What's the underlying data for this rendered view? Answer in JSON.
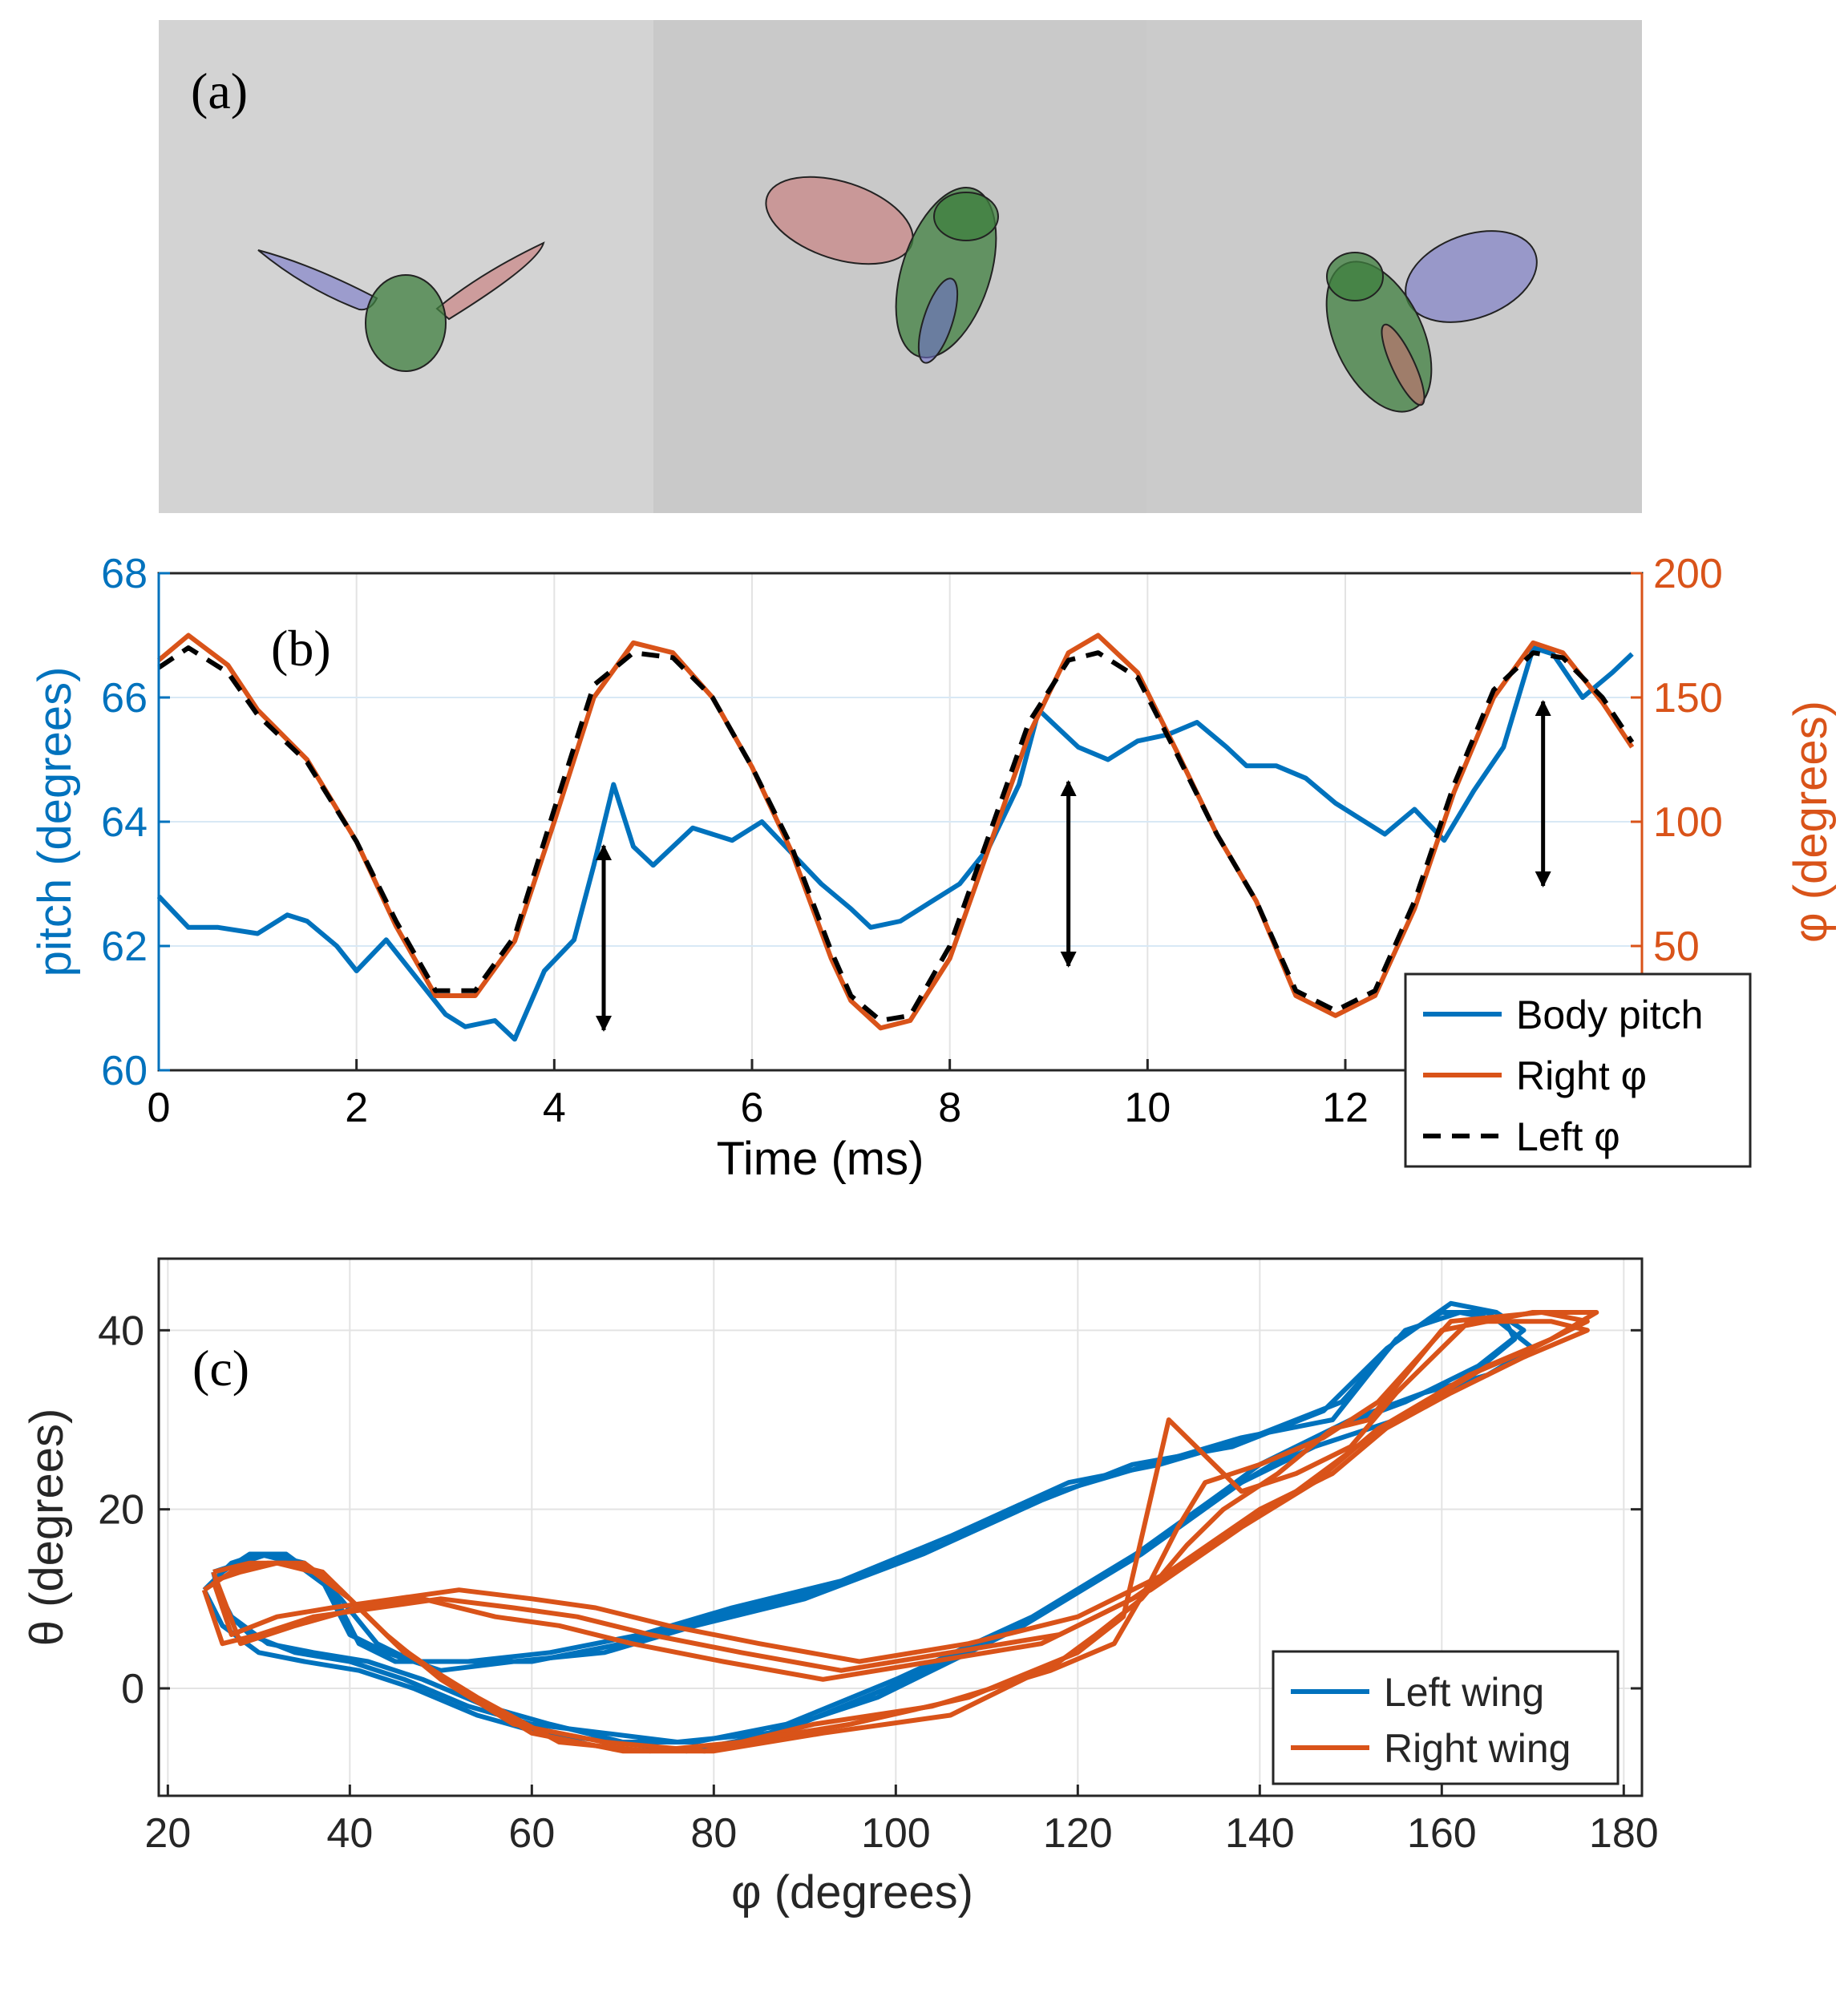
{
  "figure": {
    "panel_a": {
      "label": "(a)",
      "frames": [
        {
          "name": "frame-1",
          "description": "fly body with left and right wings extended"
        },
        {
          "name": "frame-2",
          "description": "fly body with wing forward"
        },
        {
          "name": "frame-3",
          "description": "fly body with wing back"
        }
      ],
      "colors": {
        "body": "#3f7f3f",
        "left_wing": "#6f6fc8",
        "right_wing": "#c87070",
        "background": "#cfcfcf"
      }
    },
    "panel_b": {
      "label": "(b)",
      "arrows_at_ms": [
        4.5,
        9.2,
        14.0
      ]
    },
    "panel_c": {
      "label": "(c)"
    }
  },
  "chart_data": [
    {
      "id": "panel-b",
      "type": "line",
      "xlabel": "Time (ms)",
      "ylabel_left": "pitch (degrees)",
      "ylabel_right": "φ (degrees)",
      "xlim": [
        0,
        15
      ],
      "ylim_left": [
        60,
        68
      ],
      "ylim_right": [
        0,
        200
      ],
      "xticks": [
        "0",
        "2",
        "4",
        "6",
        "8",
        "10",
        "12"
      ],
      "yticks_left": [
        "60",
        "62",
        "64",
        "66",
        "68"
      ],
      "yticks_right": [
        "50",
        "100",
        "150",
        "200"
      ],
      "grid": true,
      "legend_position": "bottom-right",
      "legend": [
        "Body pitch",
        "Right φ",
        "Left φ"
      ],
      "series": [
        {
          "name": "Body pitch",
          "axis": "left",
          "color": "#0072BD",
          "style": "solid",
          "x": [
            0,
            0.3,
            0.6,
            1.0,
            1.3,
            1.5,
            1.8,
            2.0,
            2.3,
            2.6,
            2.9,
            3.1,
            3.4,
            3.6,
            3.9,
            4.2,
            4.4,
            4.6,
            4.8,
            5.0,
            5.4,
            5.8,
            6.1,
            6.4,
            6.7,
            7.0,
            7.2,
            7.5,
            7.8,
            8.1,
            8.4,
            8.7,
            8.9,
            9.1,
            9.3,
            9.6,
            9.9,
            10.2,
            10.5,
            10.8,
            11.0,
            11.3,
            11.6,
            11.9,
            12.1,
            12.4,
            12.7,
            13.0,
            13.3,
            13.6,
            13.9,
            14.1,
            14.4,
            14.7,
            14.9
          ],
          "values": [
            62.8,
            62.3,
            62.3,
            62.2,
            62.5,
            62.4,
            62.0,
            61.6,
            62.1,
            61.5,
            60.9,
            60.7,
            60.8,
            60.5,
            61.6,
            62.1,
            63.3,
            64.6,
            63.6,
            63.3,
            63.9,
            63.7,
            64.0,
            63.5,
            63.0,
            62.6,
            62.3,
            62.4,
            62.7,
            63.0,
            63.6,
            64.6,
            65.8,
            65.5,
            65.2,
            65.0,
            65.3,
            65.4,
            65.6,
            65.2,
            64.9,
            64.9,
            64.7,
            64.3,
            64.1,
            63.8,
            64.2,
            63.7,
            64.5,
            65.2,
            66.8,
            66.7,
            66.0,
            66.4,
            66.7
          ]
        },
        {
          "name": "Right φ",
          "axis": "right",
          "color": "#D95319",
          "style": "solid",
          "x": [
            0,
            0.3,
            0.7,
            1.0,
            1.5,
            2.0,
            2.4,
            2.8,
            3.2,
            3.6,
            4.0,
            4.4,
            4.8,
            5.2,
            5.6,
            6.0,
            6.4,
            6.8,
            7.0,
            7.3,
            7.6,
            8.0,
            8.4,
            8.8,
            9.2,
            9.5,
            9.9,
            10.3,
            10.7,
            11.1,
            11.5,
            11.9,
            12.3,
            12.7,
            13.1,
            13.5,
            13.9,
            14.2,
            14.6,
            14.9
          ],
          "values": [
            165,
            175,
            163,
            145,
            125,
            92,
            58,
            30,
            30,
            52,
            100,
            150,
            172,
            168,
            150,
            122,
            88,
            45,
            28,
            17,
            20,
            45,
            90,
            135,
            168,
            175,
            160,
            128,
            95,
            68,
            30,
            22,
            30,
            65,
            112,
            150,
            172,
            168,
            148,
            130
          ]
        },
        {
          "name": "Left φ",
          "axis": "right",
          "color": "#000000",
          "style": "dashed",
          "x": [
            0,
            0.3,
            0.7,
            1.0,
            1.5,
            2.0,
            2.4,
            2.8,
            3.2,
            3.6,
            4.0,
            4.4,
            4.8,
            5.2,
            5.6,
            6.0,
            6.4,
            6.8,
            7.0,
            7.3,
            7.6,
            8.0,
            8.4,
            8.8,
            9.2,
            9.5,
            9.9,
            10.3,
            10.7,
            11.1,
            11.5,
            11.9,
            12.3,
            12.7,
            13.1,
            13.5,
            13.9,
            14.2,
            14.6,
            14.9
          ],
          "values": [
            162,
            170,
            160,
            143,
            124,
            92,
            60,
            32,
            32,
            54,
            105,
            155,
            168,
            166,
            150,
            122,
            90,
            48,
            30,
            20,
            22,
            50,
            95,
            140,
            165,
            168,
            158,
            127,
            95,
            68,
            32,
            24,
            32,
            68,
            115,
            153,
            168,
            166,
            150,
            132
          ]
        }
      ]
    },
    {
      "id": "panel-c",
      "type": "line",
      "xlabel": "φ (degrees)",
      "ylabel": "θ (degrees)",
      "xlim": [
        19,
        182
      ],
      "ylim": [
        -12,
        48
      ],
      "xticks": [
        "20",
        "40",
        "60",
        "80",
        "100",
        "120",
        "140",
        "160",
        "180"
      ],
      "yticks": [
        "0",
        "20",
        "40"
      ],
      "grid": true,
      "legend_position": "bottom-right",
      "legend": [
        "Left wing",
        "Right wing"
      ],
      "series": [
        {
          "name": "Left wing",
          "color": "#0072BD",
          "cycles": [
            {
              "x": [
                25,
                27,
                30,
                34,
                38,
                41,
                45,
                52,
                60,
                70,
                80,
                92,
                105,
                118,
                128,
                138,
                148,
                155,
                160,
                165,
                170,
                165,
                158,
                150,
                140,
                128,
                115,
                100,
                88,
                78,
                70,
                62,
                55,
                48,
                42,
                36,
                31,
                27,
                25
              ],
              "y": [
                12,
                14,
                15,
                14,
                11,
                5,
                3,
                3,
                3,
                5,
                8,
                11,
                16,
                22,
                25,
                28,
                30,
                39,
                42,
                42,
                38,
                35,
                33,
                30,
                25,
                16,
                8,
                1,
                -4,
                -6,
                -6,
                -4,
                -2,
                1,
                3,
                4,
                5,
                8,
                12
              ]
            },
            {
              "x": [
                24,
                26,
                29,
                33,
                37,
                40,
                44,
                50,
                58,
                68,
                78,
                90,
                103,
                116,
                126,
                137,
                147,
                154,
                161,
                166,
                169,
                164,
                156,
                148,
                138,
                127,
                114,
                99,
                87,
                77,
                69,
                61,
                54,
                47,
                41,
                35,
                30,
                26,
                24
              ],
              "y": [
                11,
                13,
                15,
                15,
                12,
                6,
                4,
                2,
                3,
                4,
                7,
                10,
                15,
                21,
                25,
                27,
                31,
                38,
                43,
                42,
                40,
                36,
                32,
                29,
                23,
                15,
                7,
                0,
                -5,
                -7,
                -6,
                -5,
                -3,
                0,
                2,
                3,
                4,
                7,
                11
              ]
            },
            {
              "x": [
                25,
                28,
                31,
                35,
                39,
                43,
                47,
                53,
                62,
                72,
                82,
                94,
                106,
                119,
                129,
                139,
                149,
                156,
                162,
                167,
                168,
                162,
                155,
                146,
                136,
                125,
                112,
                98,
                86,
                76,
                68,
                60,
                53,
                46,
                40,
                34,
                29,
                26,
                25
              ],
              "y": [
                13,
                14,
                15,
                14,
                10,
                5,
                3,
                3,
                4,
                6,
                9,
                12,
                17,
                23,
                25,
                28,
                32,
                40,
                42,
                41,
                39,
                34,
                30,
                27,
                22,
                14,
                6,
                -1,
                -5,
                -6,
                -5,
                -4,
                -2,
                1,
                3,
                4,
                6,
                9,
                13
              ]
            }
          ]
        },
        {
          "name": "Right wing",
          "color": "#D95319",
          "cycles": [
            {
              "x": [
                25,
                28,
                32,
                36,
                40,
                45,
                52,
                60,
                70,
                80,
                92,
                106,
                118,
                122,
                127,
                132,
                136,
                142,
                148,
                152,
                160,
                170,
                177,
                172,
                165,
                155,
                148,
                140,
                130,
                120,
                108,
                96,
                85,
                75,
                67,
                60,
                52,
                45,
                38,
                32,
                27,
                25
              ],
              "y": [
                12,
                13,
                14,
                13,
                10,
                5,
                0,
                -5,
                -7,
                -7,
                -5,
                -3,
                3,
                6,
                10,
                16,
                20,
                24,
                29,
                30,
                40,
                42,
                42,
                39,
                36,
                30,
                24,
                20,
                13,
                8,
                5,
                3,
                5,
                7,
                9,
                10,
                11,
                10,
                9,
                8,
                6,
                12
              ]
            },
            {
              "x": [
                24,
                27,
                31,
                35,
                39,
                44,
                50,
                58,
                68,
                79,
                91,
                104,
                117,
                124,
                128,
                131,
                134,
                140,
                147,
                153,
                161,
                171,
                176,
                170,
                163,
                153,
                146,
                138,
                128,
                118,
                106,
                94,
                83,
                73,
                65,
                58,
                50,
                43,
                36,
                30,
                26,
                24
              ],
              "y": [
                11,
                13,
                14,
                14,
                11,
                6,
                1,
                -4,
                -6,
                -7,
                -4,
                -2,
                2,
                5,
                12,
                18,
                23,
                25,
                28,
                32,
                41,
                42,
                41,
                38,
                35,
                29,
                23,
                18,
                11,
                6,
                4,
                2,
                4,
                6,
                8,
                9,
                10,
                9,
                8,
                6,
                5,
                11
              ]
            },
            {
              "x": [
                25,
                29,
                33,
                37,
                41,
                46,
                54,
                63,
                73,
                83,
                95,
                108,
                120,
                125,
                130,
                134,
                138,
                144,
                150,
                155,
                163,
                172,
                176,
                169,
                161,
                152,
                144,
                136,
                126,
                116,
                104,
                92,
                81,
                71,
                63,
                56,
                48,
                41,
                34,
                28,
                25
              ],
              "y": [
                13,
                14,
                14,
                13,
                9,
                4,
                -1,
                -6,
                -7,
                -6,
                -4,
                -1,
                4,
                8,
                30,
                26,
                22,
                24,
                27,
                33,
                41,
                41,
                40,
                37,
                33,
                28,
                22,
                17,
                10,
                5,
                3,
                1,
                3,
                5,
                7,
                8,
                10,
                9,
                7,
                5,
                13
              ]
            }
          ]
        }
      ]
    }
  ]
}
